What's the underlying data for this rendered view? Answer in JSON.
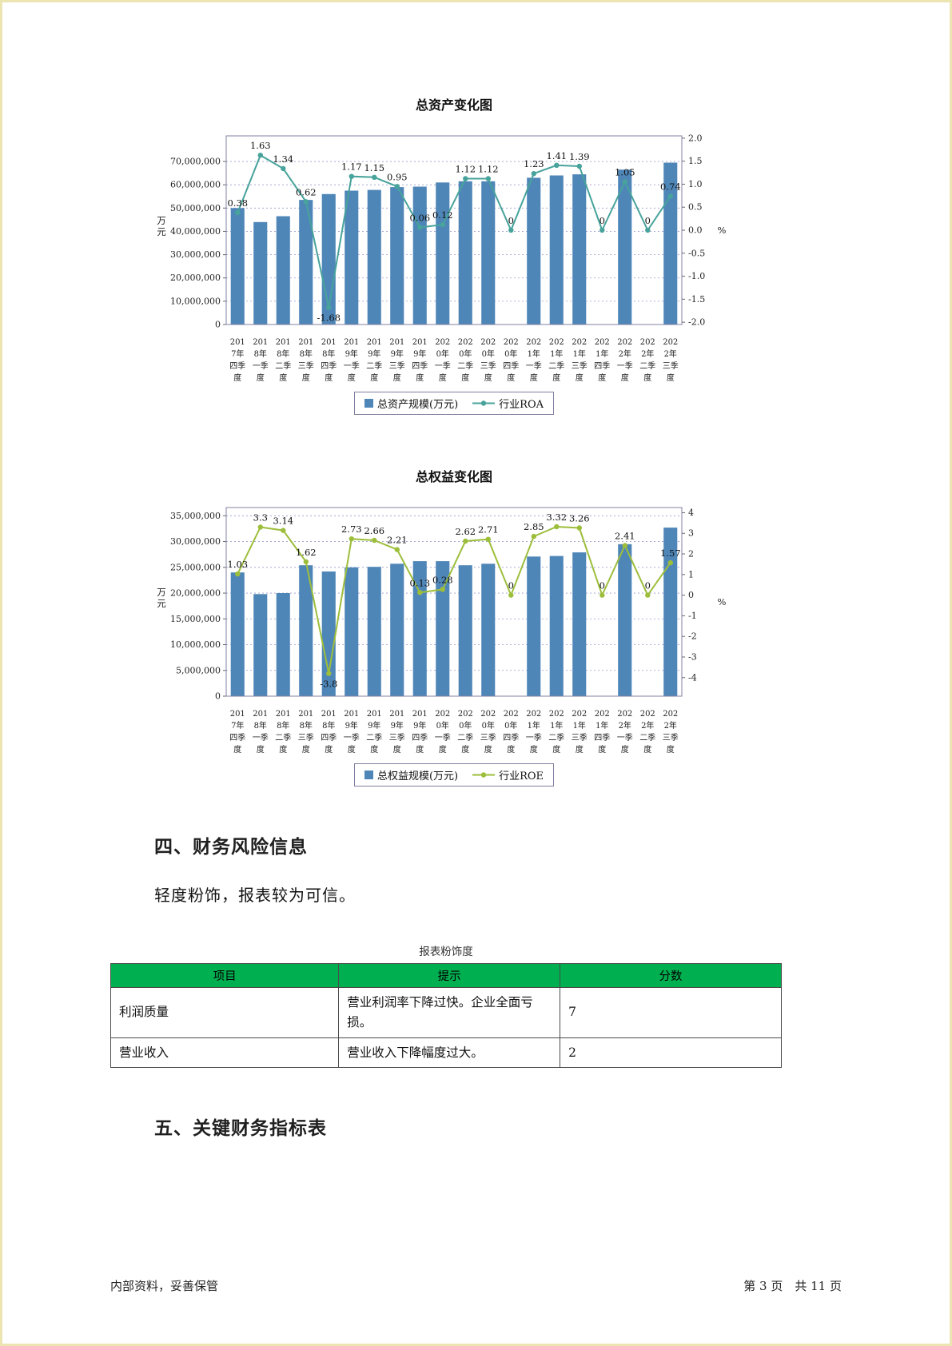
{
  "sections": {
    "risk_heading": "四、财务风险信息",
    "risk_text": "轻度粉饰，报表较为可信。",
    "kpi_heading": "五、关键财务指标表"
  },
  "table": {
    "caption": "报表粉饰度",
    "header_bg": "#00b050",
    "columns": [
      "项目",
      "提示",
      "分数"
    ],
    "rows": [
      {
        "item": "利润质量",
        "hint": "营业利润率下降过快。企业全面亏损。",
        "score": "7"
      },
      {
        "item": "营业收入",
        "hint": "营业收入下降幅度过大。",
        "score": "2"
      }
    ]
  },
  "footer": {
    "left": "内部资料，妥善保管",
    "right": "第 3 页　共 11 页"
  },
  "colors": {
    "bar_blue": "#4f86b8",
    "roa_line_teal": "#47a39b",
    "roe_line_green": "#9dbe3b",
    "table_header_green": "#00b050"
  },
  "chart_data": [
    {
      "type": "bar",
      "name": "total-assets",
      "title": "总资产变化图",
      "categories": [
        "2017年四季度",
        "2018年一季度",
        "2018年二季度",
        "2018年三季度",
        "2018年四季度",
        "2019年一季度",
        "2019年二季度",
        "2019年三季度",
        "2019年四季度",
        "2020年一季度",
        "2020年二季度",
        "2020年三季度",
        "2020年四季度",
        "2021年一季度",
        "2021年二季度",
        "2021年三季度",
        "2021年四季度",
        "2022年一季度",
        "2022年二季度",
        "2022年三季度"
      ],
      "bar_series": {
        "name": "总资产规模(万元)",
        "color": "#4f86b8",
        "values": [
          50000000,
          44000000,
          46500000,
          53500000,
          56000000,
          57500000,
          57800000,
          59000000,
          59200000,
          61000000,
          61500000,
          61500000,
          null,
          63000000,
          64000000,
          64500000,
          null,
          66500000,
          null,
          69500000
        ]
      },
      "line_series": {
        "name": "行业ROA",
        "color": "#47a39b",
        "values": [
          0.38,
          1.63,
          1.34,
          0.62,
          -1.68,
          1.17,
          1.15,
          0.95,
          0.06,
          0.12,
          1.12,
          1.12,
          0,
          1.23,
          1.41,
          1.39,
          0,
          1.05,
          0,
          0.74
        ]
      },
      "left_axis": {
        "label": "万元",
        "tick_min": 0,
        "tick_max": 70000000,
        "step": 10000000,
        "scale_min": 0,
        "scale_max": 81000000
      },
      "right_axis": {
        "label": "%",
        "tick_min": -2,
        "tick_max": 2,
        "step": 0.5,
        "scale_min": -2.05,
        "scale_max": 2.05,
        "decimals": 1
      },
      "grid": "dashed-horizontal",
      "legend_position": "bottom",
      "legend": [
        "总资产规模(万元)",
        "行业ROA"
      ]
    },
    {
      "type": "bar",
      "name": "total-equity",
      "title": "总权益变化图",
      "categories": [
        "2017年四季度",
        "2018年一季度",
        "2018年二季度",
        "2018年三季度",
        "2018年四季度",
        "2019年一季度",
        "2019年二季度",
        "2019年三季度",
        "2019年四季度",
        "2020年一季度",
        "2020年二季度",
        "2020年三季度",
        "2020年四季度",
        "2021年一季度",
        "2021年二季度",
        "2021年三季度",
        "2021年四季度",
        "2022年一季度",
        "2022年二季度",
        "2022年三季度"
      ],
      "bar_series": {
        "name": "总权益规模(万元)",
        "color": "#4f86b8",
        "values": [
          24000000,
          19800000,
          20000000,
          25400000,
          24200000,
          25000000,
          25100000,
          25700000,
          26200000,
          26200000,
          25400000,
          25700000,
          null,
          27100000,
          27200000,
          27900000,
          null,
          29500000,
          null,
          32700000
        ]
      },
      "line_series": {
        "name": "行业ROE",
        "color": "#9dbe3b",
        "values": [
          1.03,
          3.3,
          3.14,
          1.62,
          -3.8,
          2.73,
          2.66,
          2.21,
          0.13,
          0.28,
          2.62,
          2.71,
          0,
          2.85,
          3.32,
          3.26,
          0,
          2.41,
          0,
          1.57
        ]
      },
      "left_axis": {
        "label": "万元",
        "tick_min": 0,
        "tick_max": 35000000,
        "step": 5000000,
        "scale_min": 0,
        "scale_max": 36600000
      },
      "right_axis": {
        "label": "%",
        "tick_min": -4,
        "tick_max": 4,
        "step": 1,
        "scale_min": -4.9,
        "scale_max": 4.25,
        "decimals": 0
      },
      "grid": "dashed-horizontal",
      "legend_position": "bottom",
      "legend": [
        "总权益规模(万元)",
        "行业ROE"
      ]
    }
  ]
}
